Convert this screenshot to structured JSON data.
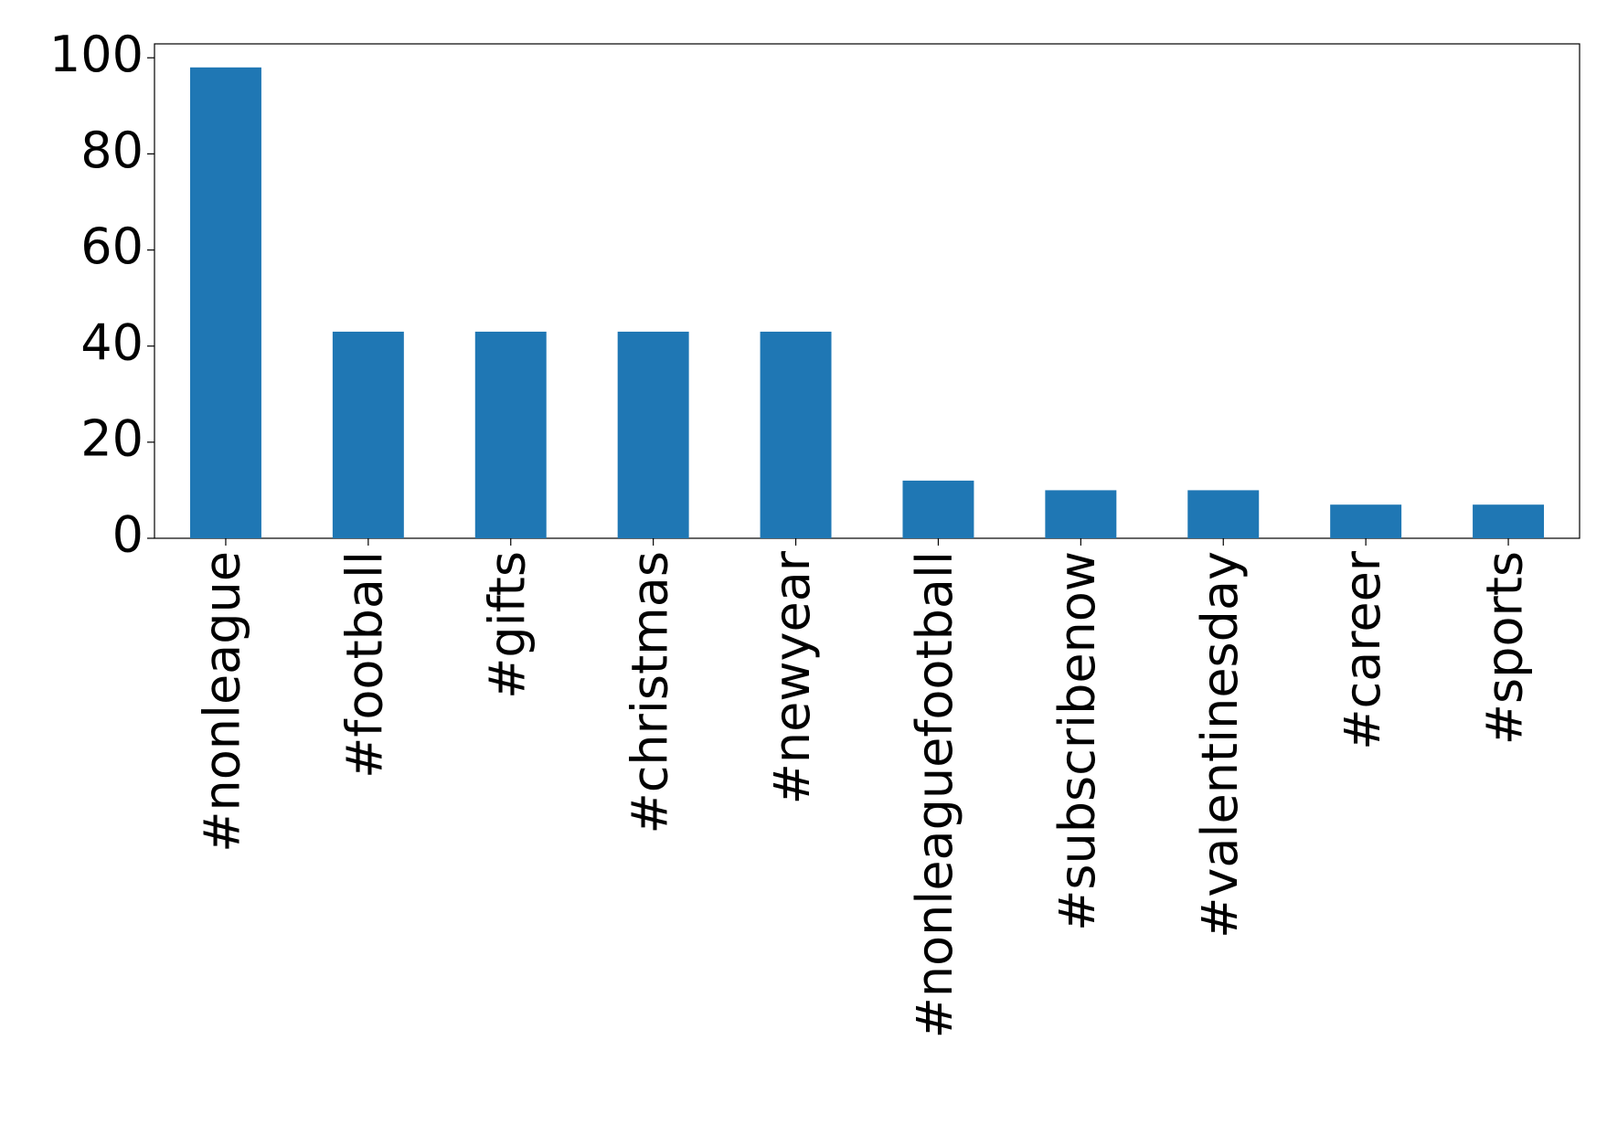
{
  "chart_data": {
    "type": "bar",
    "categories": [
      "#nonleague",
      "#football",
      "#gifts",
      "#christmas",
      "#newyear",
      "#nonleaguefootball",
      "#subscribenow",
      "#valentinesday",
      "#career",
      "#sports"
    ],
    "values": [
      98,
      43,
      43,
      43,
      43,
      12,
      10,
      10,
      7,
      7
    ],
    "color": "#1f77b4",
    "ylim": [
      0,
      102.9
    ],
    "yticks": [
      0,
      20,
      40,
      60,
      80,
      100
    ],
    "grid": false
  }
}
